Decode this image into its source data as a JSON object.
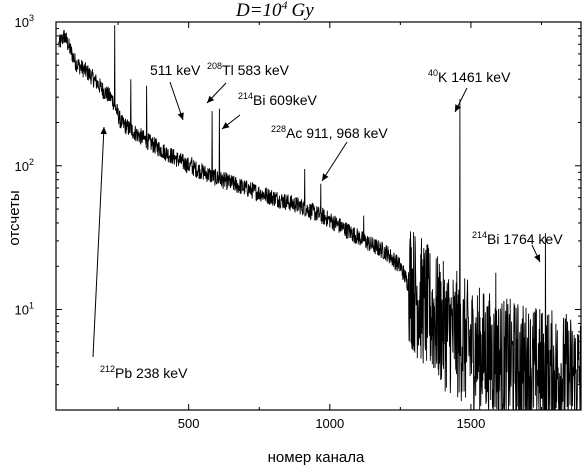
{
  "chart_data": {
    "type": "line",
    "title": "D=10",
    "title_sup": "4",
    "title_unit": "Gy",
    "xlabel": "номер канала",
    "ylabel": "отсчеты",
    "xlim": [
      30,
      1890
    ],
    "ylim": [
      2,
      1000
    ],
    "yscale": "log",
    "grid": false,
    "x_ticks": [
      500,
      1000,
      1500
    ],
    "x_tick_labels": [
      "500",
      "1000",
      "1500"
    ],
    "y_ticks": [
      10,
      100,
      1000
    ],
    "y_tick_labels": [
      {
        "base": "10",
        "exp": "1"
      },
      {
        "base": "10",
        "exp": "2"
      },
      {
        "base": "10",
        "exp": "3"
      }
    ],
    "series": [
      {
        "baseline": [
          [
            40,
            700
          ],
          [
            60,
            800
          ],
          [
            100,
            520
          ],
          [
            150,
            430
          ],
          [
            200,
            330
          ],
          [
            230,
            290
          ],
          [
            260,
            200
          ],
          [
            300,
            175
          ],
          [
            350,
            150
          ],
          [
            400,
            130
          ],
          [
            500,
            100
          ],
          [
            600,
            82
          ],
          [
            700,
            70
          ],
          [
            800,
            60
          ],
          [
            900,
            52
          ],
          [
            1000,
            42
          ],
          [
            1100,
            32
          ],
          [
            1150,
            28
          ],
          [
            1200,
            25
          ],
          [
            1250,
            20
          ],
          [
            1300,
            12
          ],
          [
            1350,
            9
          ],
          [
            1400,
            7
          ],
          [
            1450,
            6
          ],
          [
            1500,
            5
          ],
          [
            1600,
            4
          ],
          [
            1700,
            3.6
          ],
          [
            1800,
            3.2
          ],
          [
            1890,
            3
          ]
        ],
        "peaks": [
          [
            238,
            950
          ],
          [
            295,
            400
          ],
          [
            351,
            360
          ],
          [
            511,
            115
          ],
          [
            583,
            240
          ],
          [
            609,
            250
          ],
          [
            911,
            95
          ],
          [
            968,
            75
          ],
          [
            1120,
            45
          ],
          [
            1461,
            290
          ],
          [
            1588,
            18
          ],
          [
            1764,
            34
          ]
        ]
      }
    ],
    "annotations": [
      {
        "sup": "212",
        "text": "Pb 238 keV",
        "x": 238
      },
      {
        "sup": "",
        "text": "511 keV",
        "x": 511
      },
      {
        "sup": "208",
        "text": "Tl 583 keV",
        "x": 583
      },
      {
        "sup": "214",
        "text": "Bi 609keV",
        "x": 609
      },
      {
        "sup": "228",
        "text": "Ac 911, 968 keV",
        "x": 968
      },
      {
        "sup": "40",
        "text": "K 1461 keV",
        "x": 1461
      },
      {
        "sup": "214",
        "text": "Bi 1764 keV",
        "x": 1764
      }
    ]
  }
}
